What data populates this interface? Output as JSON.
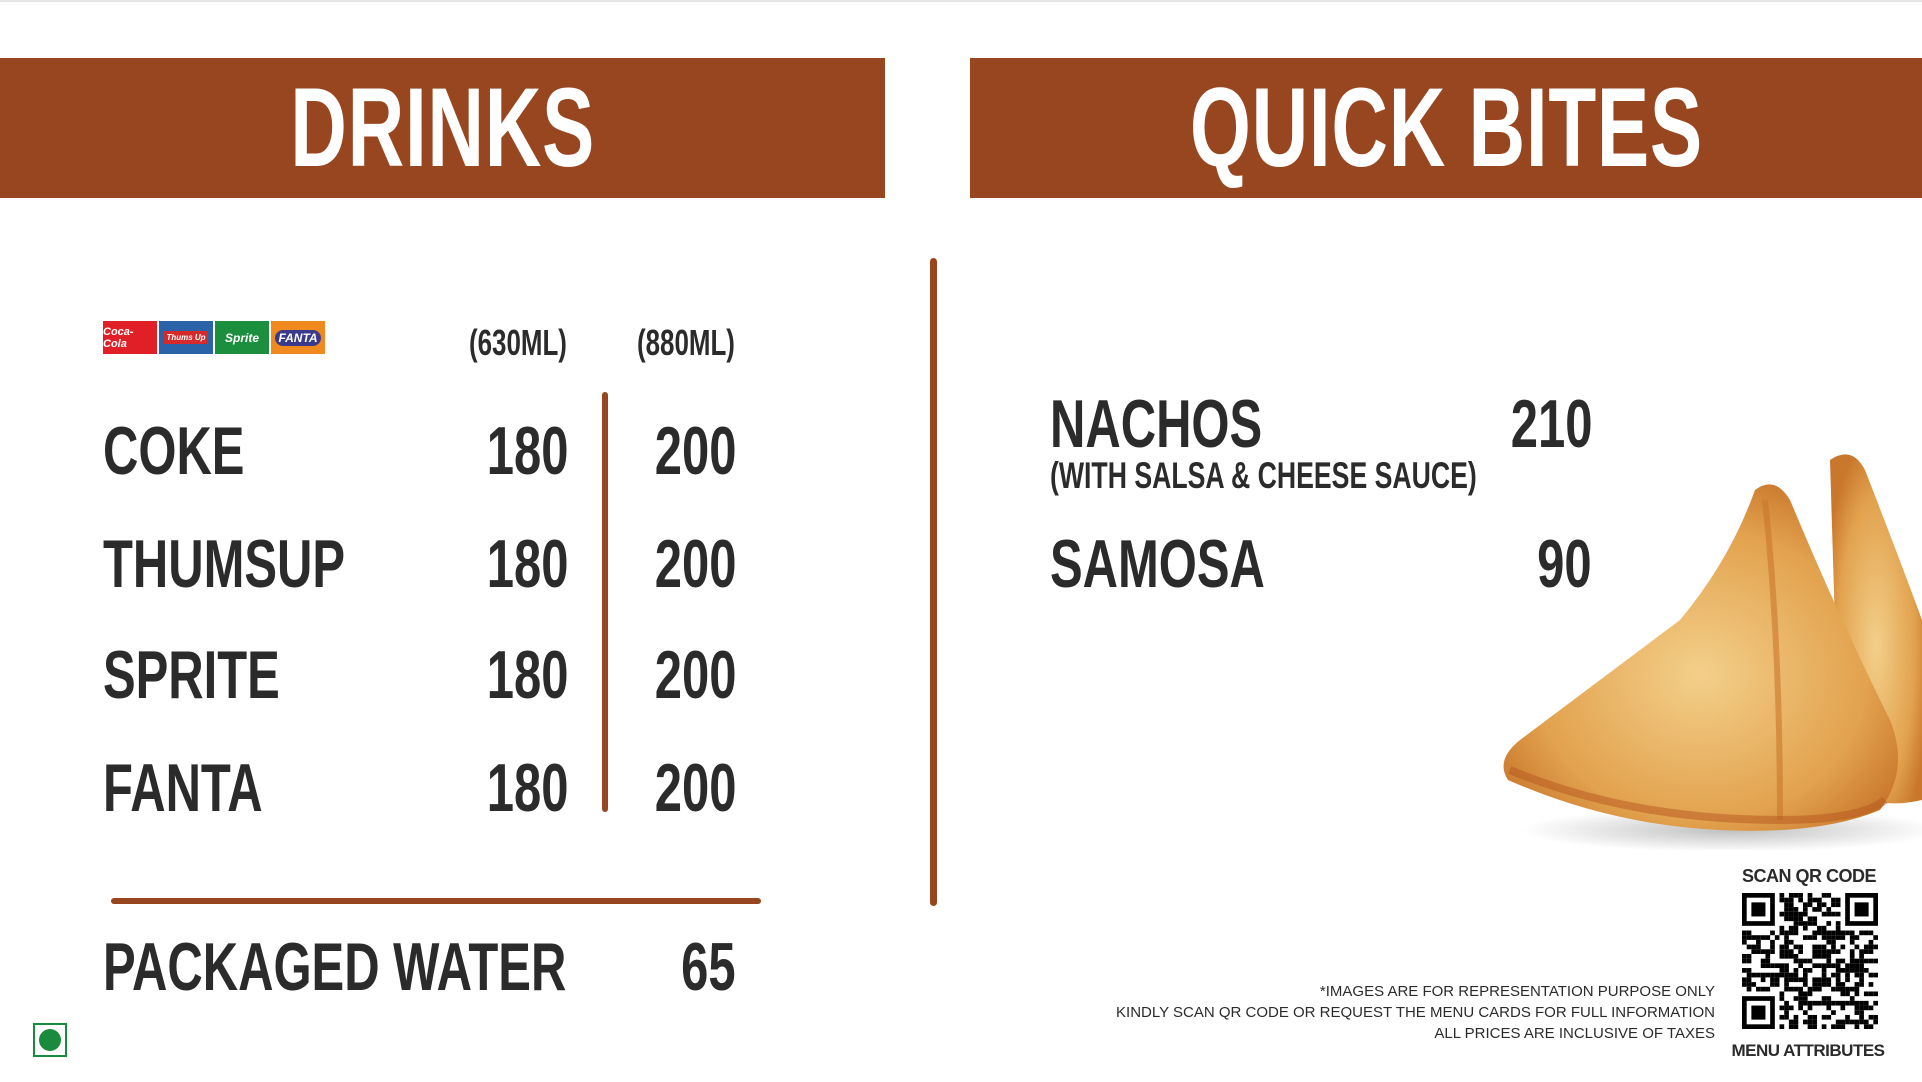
{
  "colors": {
    "brand": "#98461f",
    "veg": "#1a8a3c"
  },
  "drinks": {
    "title": "DRINKS",
    "brands": [
      "Coca-Cola",
      "Thums Up",
      "Sprite",
      "FANTA"
    ],
    "size_small": "(630ML)",
    "size_large": "(880ML)",
    "items": [
      {
        "name": "COKE",
        "small": "180",
        "large": "200"
      },
      {
        "name": "THUMSUP",
        "small": "180",
        "large": "200"
      },
      {
        "name": "SPRITE",
        "small": "180",
        "large": "200"
      },
      {
        "name": "FANTA",
        "small": "180",
        "large": "200"
      }
    ],
    "water": {
      "name": "PACKAGED WATER",
      "price": "65"
    }
  },
  "bites": {
    "title": "QUICK BITES",
    "items": [
      {
        "name": "NACHOS",
        "sub": "(WITH SALSA & CHEESE SAUCE)",
        "price": "210"
      },
      {
        "name": "SAMOSA",
        "price": "90"
      }
    ]
  },
  "footer": {
    "qr_title": "SCAN QR CODE",
    "qr_caption": "MENU ATTRIBUTES",
    "notes": [
      "*IMAGES ARE FOR REPRESENTATION PURPOSE ONLY",
      "KINDLY SCAN QR CODE OR REQUEST THE MENU CARDS FOR FULL INFORMATION",
      "ALL PRICES ARE INCLUSIVE OF TAXES"
    ]
  }
}
